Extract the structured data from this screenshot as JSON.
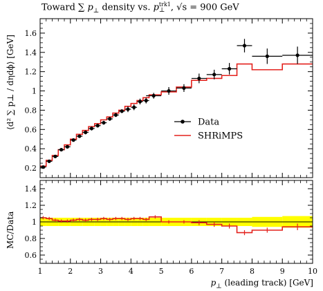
{
  "chart_data": [
    {
      "type": "line",
      "panel": "main",
      "title": "Toward ∑ p⊥ density vs. p⊥ᵗʳᵏ¹, √s = 900 GeV",
      "title_parts": {
        "prefix": "Toward ∑ ",
        "p1": "p",
        "perp1": "⊥",
        "mid": " density vs. ",
        "p2": "p",
        "sup": "trk1",
        "sub": "⊥",
        "sqrt_part": ", √s = 900 GeV"
      },
      "ylabel": "⟨d² ∑ p⊥ / dηdϕ⟩ [GeV]",
      "xlim": [
        1,
        10
      ],
      "ylim": [
        0.1,
        1.75
      ],
      "yticks": [
        0.2,
        0.4,
        0.6,
        0.8,
        1,
        1.2,
        1.4,
        1.6
      ],
      "ytick_labels": [
        "0.2",
        "0.4",
        "0.6",
        "0.8",
        "1",
        "1.2",
        "1.4",
        "1.6"
      ],
      "legend_position": "middle-right",
      "series": [
        {
          "name": "Data",
          "style": "points",
          "color": "#000000",
          "x": [
            1.1,
            1.3,
            1.5,
            1.7,
            1.9,
            2.1,
            2.3,
            2.5,
            2.7,
            2.9,
            3.1,
            3.3,
            3.5,
            3.7,
            3.9,
            4.1,
            4.3,
            4.5,
            4.75,
            5.25,
            5.75,
            6.25,
            6.75,
            7.25,
            7.75,
            8.5,
            9.5
          ],
          "y": [
            0.21,
            0.27,
            0.32,
            0.39,
            0.42,
            0.49,
            0.53,
            0.57,
            0.61,
            0.64,
            0.67,
            0.71,
            0.75,
            0.79,
            0.81,
            0.83,
            0.89,
            0.9,
            0.95,
            1.0,
            1.03,
            1.13,
            1.17,
            1.23,
            1.47,
            1.36,
            1.37
          ],
          "xerr": [
            0.1,
            0.1,
            0.1,
            0.1,
            0.1,
            0.1,
            0.1,
            0.1,
            0.1,
            0.1,
            0.1,
            0.1,
            0.1,
            0.1,
            0.1,
            0.1,
            0.1,
            0.1,
            0.25,
            0.25,
            0.25,
            0.25,
            0.25,
            0.25,
            0.25,
            0.5,
            0.5
          ],
          "yerr": [
            0.01,
            0.01,
            0.01,
            0.01,
            0.01,
            0.01,
            0.01,
            0.02,
            0.02,
            0.02,
            0.02,
            0.02,
            0.02,
            0.02,
            0.03,
            0.03,
            0.03,
            0.03,
            0.03,
            0.04,
            0.04,
            0.05,
            0.05,
            0.06,
            0.07,
            0.08,
            0.09
          ]
        },
        {
          "name": "SHRiMPS",
          "style": "step",
          "color": "#e3211c",
          "edges": [
            1.0,
            1.2,
            1.4,
            1.6,
            1.8,
            2.0,
            2.2,
            2.4,
            2.6,
            2.8,
            3.0,
            3.2,
            3.4,
            3.6,
            3.8,
            4.0,
            4.2,
            4.4,
            4.6,
            5.0,
            5.5,
            6.0,
            6.5,
            7.0,
            7.5,
            8.0,
            9.0,
            10.0
          ],
          "values": [
            0.22,
            0.28,
            0.33,
            0.39,
            0.44,
            0.5,
            0.55,
            0.59,
            0.63,
            0.66,
            0.7,
            0.73,
            0.77,
            0.8,
            0.84,
            0.87,
            0.9,
            0.93,
            0.96,
            0.99,
            1.04,
            1.11,
            1.13,
            1.16,
            1.28,
            1.22,
            1.28
          ]
        }
      ]
    },
    {
      "type": "line",
      "panel": "ratio",
      "ylabel": "MC/Data",
      "xlabel": "p⊥ (leading track) [GeV]",
      "xlabel_parts": {
        "p": "p",
        "perp": "⊥",
        "rest": " (leading track) [GeV]"
      },
      "xlim": [
        1,
        10
      ],
      "ylim": [
        0.5,
        1.5
      ],
      "yticks": [
        0.6,
        0.8,
        1,
        1.2,
        1.4
      ],
      "ytick_labels": [
        "0.6",
        "0.8",
        "1",
        "1.2",
        "1.4"
      ],
      "xticks": [
        1,
        2,
        3,
        4,
        5,
        6,
        7,
        8,
        9,
        10
      ],
      "xtick_labels": [
        "1",
        "2",
        "3",
        "4",
        "5",
        "6",
        "7",
        "8",
        "9",
        "10"
      ],
      "band_color": "#ffff00",
      "band": {
        "edges": [
          1.0,
          1.2,
          1.4,
          1.6,
          1.8,
          2.0,
          2.2,
          2.4,
          2.6,
          2.8,
          3.0,
          3.2,
          3.4,
          3.6,
          3.8,
          4.0,
          4.2,
          4.4,
          4.6,
          5.0,
          5.5,
          6.0,
          6.5,
          7.0,
          7.5,
          8.0,
          9.0,
          10.0
        ],
        "relerr": [
          0.05,
          0.05,
          0.05,
          0.05,
          0.05,
          0.05,
          0.05,
          0.05,
          0.05,
          0.05,
          0.05,
          0.05,
          0.05,
          0.05,
          0.05,
          0.05,
          0.05,
          0.05,
          0.05,
          0.05,
          0.05,
          0.05,
          0.05,
          0.05,
          0.05,
          0.06,
          0.07
        ]
      },
      "series": [
        {
          "name": "SHRiMPS",
          "style": "step",
          "color": "#e3211c",
          "edges": [
            1.0,
            1.2,
            1.4,
            1.6,
            1.8,
            2.0,
            2.2,
            2.4,
            2.6,
            2.8,
            3.0,
            3.2,
            3.4,
            3.6,
            3.8,
            4.0,
            4.2,
            4.4,
            4.6,
            5.0,
            5.5,
            6.0,
            6.5,
            7.0,
            7.5,
            8.0,
            9.0,
            10.0
          ],
          "values": [
            1.05,
            1.04,
            1.02,
            1.01,
            1.01,
            1.02,
            1.03,
            1.02,
            1.03,
            1.03,
            1.04,
            1.03,
            1.04,
            1.04,
            1.03,
            1.04,
            1.04,
            1.03,
            1.06,
            1.0,
            1.0,
            0.99,
            0.97,
            0.95,
            0.87,
            0.9,
            0.94
          ],
          "yerr": [
            0.02,
            0.02,
            0.02,
            0.02,
            0.02,
            0.02,
            0.02,
            0.02,
            0.02,
            0.02,
            0.02,
            0.02,
            0.02,
            0.02,
            0.02,
            0.02,
            0.02,
            0.02,
            0.02,
            0.02,
            0.02,
            0.03,
            0.03,
            0.03,
            0.03,
            0.03,
            0.04
          ]
        }
      ]
    }
  ]
}
